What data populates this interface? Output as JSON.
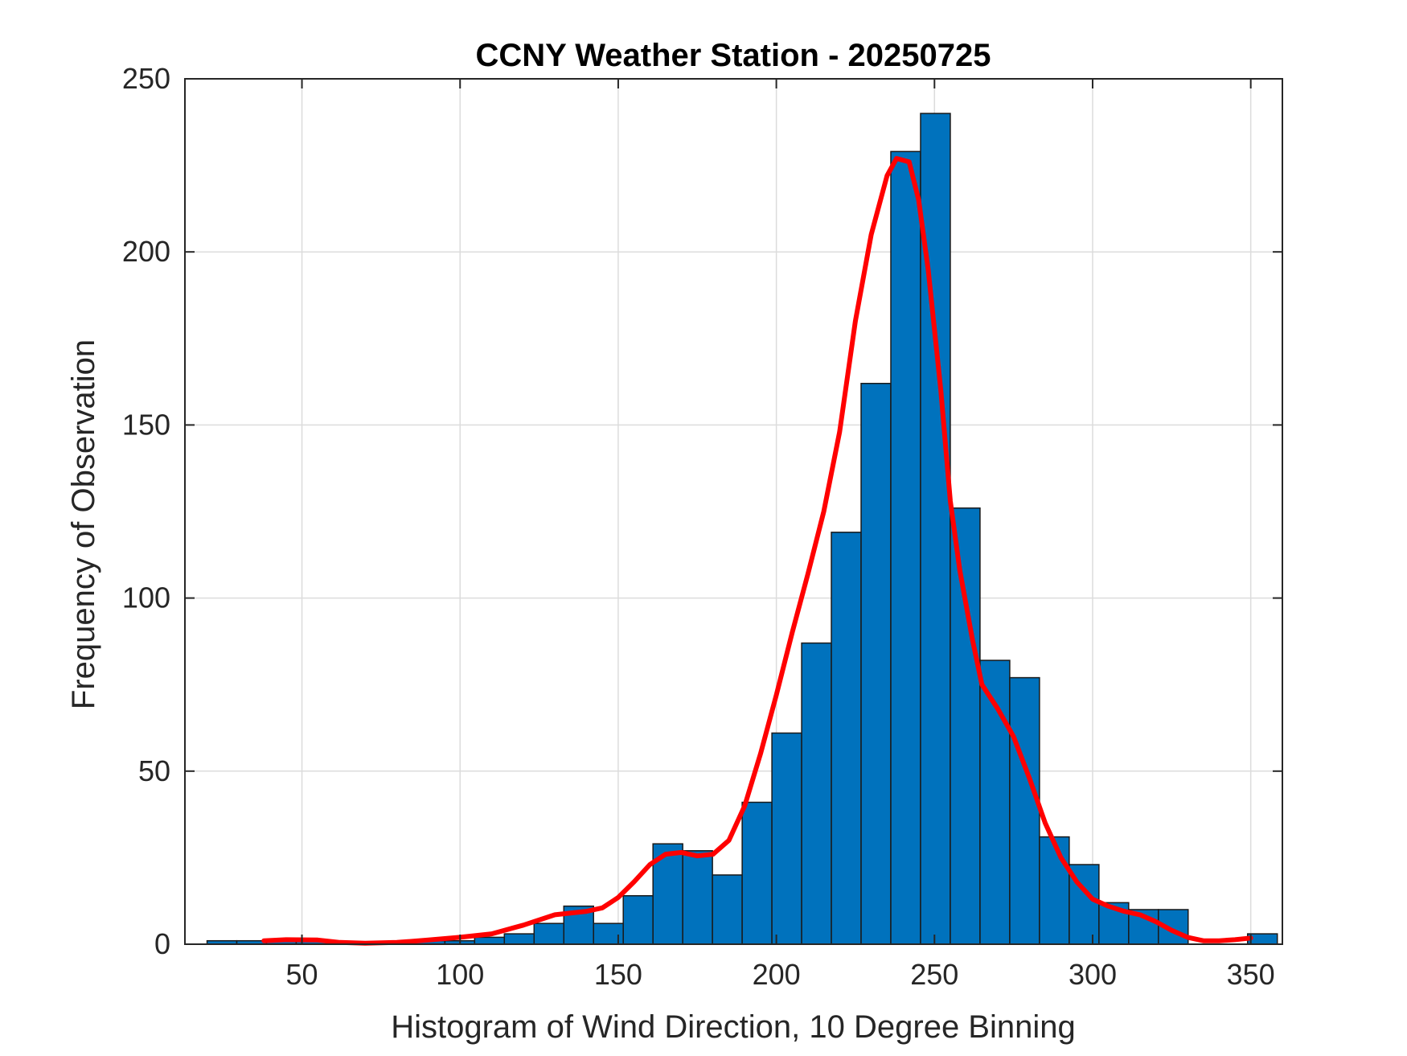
{
  "colors": {
    "bar_fill": "#0072BD",
    "fit_line": "#FF0000"
  },
  "chart_data": {
    "type": "bar",
    "title": "CCNY Weather Station - 20250725",
    "xlabel": "Histogram of Wind Direction, 10 Degree Binning",
    "ylabel": "Frequency of Observation",
    "xlim": [
      13,
      360
    ],
    "ylim": [
      0,
      250
    ],
    "xticks": [
      50,
      100,
      150,
      200,
      250,
      300,
      350
    ],
    "yticks": [
      0,
      50,
      100,
      150,
      200,
      250
    ],
    "grid": true,
    "bin_width": 9.4,
    "bins": [
      {
        "left": 20.0,
        "value": 1
      },
      {
        "left": 29.4,
        "value": 1
      },
      {
        "left": 38.8,
        "value": 1
      },
      {
        "left": 48.2,
        "value": 1
      },
      {
        "left": 57.6,
        "value": 0
      },
      {
        "left": 67.0,
        "value": 0
      },
      {
        "left": 76.4,
        "value": 0
      },
      {
        "left": 85.8,
        "value": 1
      },
      {
        "left": 95.2,
        "value": 1
      },
      {
        "left": 104.6,
        "value": 2
      },
      {
        "left": 114.0,
        "value": 3
      },
      {
        "left": 123.4,
        "value": 6
      },
      {
        "left": 132.8,
        "value": 11
      },
      {
        "left": 142.2,
        "value": 6
      },
      {
        "left": 151.6,
        "value": 14
      },
      {
        "left": 161.0,
        "value": 29
      },
      {
        "left": 170.4,
        "value": 27
      },
      {
        "left": 179.8,
        "value": 20
      },
      {
        "left": 189.2,
        "value": 41
      },
      {
        "left": 198.6,
        "value": 61
      },
      {
        "left": 208.0,
        "value": 87
      },
      {
        "left": 217.4,
        "value": 119
      },
      {
        "left": 226.8,
        "value": 162
      },
      {
        "left": 236.2,
        "value": 229
      },
      {
        "left": 245.6,
        "value": 240
      },
      {
        "left": 255.0,
        "value": 126
      },
      {
        "left": 264.4,
        "value": 82
      },
      {
        "left": 273.8,
        "value": 77
      },
      {
        "left": 283.2,
        "value": 31
      },
      {
        "left": 292.6,
        "value": 23
      },
      {
        "left": 302.0,
        "value": 12
      },
      {
        "left": 311.4,
        "value": 10
      },
      {
        "left": 320.8,
        "value": 10
      },
      {
        "left": 330.2,
        "value": 0
      },
      {
        "left": 339.6,
        "value": 0
      },
      {
        "left": 349.0,
        "value": 3
      }
    ],
    "fit_line": {
      "x": [
        38,
        45,
        55,
        62,
        70,
        80,
        90,
        100,
        110,
        120,
        130,
        140,
        145,
        150,
        155,
        160,
        165,
        170,
        175,
        180,
        185,
        190,
        195,
        200,
        205,
        210,
        215,
        220,
        225,
        230,
        235,
        238,
        242,
        245,
        248,
        252,
        255,
        258,
        262,
        265,
        270,
        275,
        280,
        285,
        290,
        295,
        300,
        305,
        310,
        315,
        320,
        325,
        330,
        335,
        340,
        345,
        350
      ],
      "y": [
        1,
        1.3,
        1.2,
        0.5,
        0.3,
        0.5,
        1.2,
        2,
        3,
        5.5,
        8.5,
        9.5,
        10.5,
        13.5,
        18,
        23,
        26,
        26.5,
        25.5,
        26,
        30,
        40,
        55,
        72,
        90,
        107,
        125,
        148,
        180,
        205,
        222,
        227,
        226,
        215,
        195,
        160,
        128,
        108,
        88,
        75,
        68,
        60,
        48,
        35,
        25,
        18,
        13,
        11,
        9.5,
        8.5,
        6.5,
        4,
        2,
        1,
        1,
        1.3,
        1.8
      ]
    }
  }
}
